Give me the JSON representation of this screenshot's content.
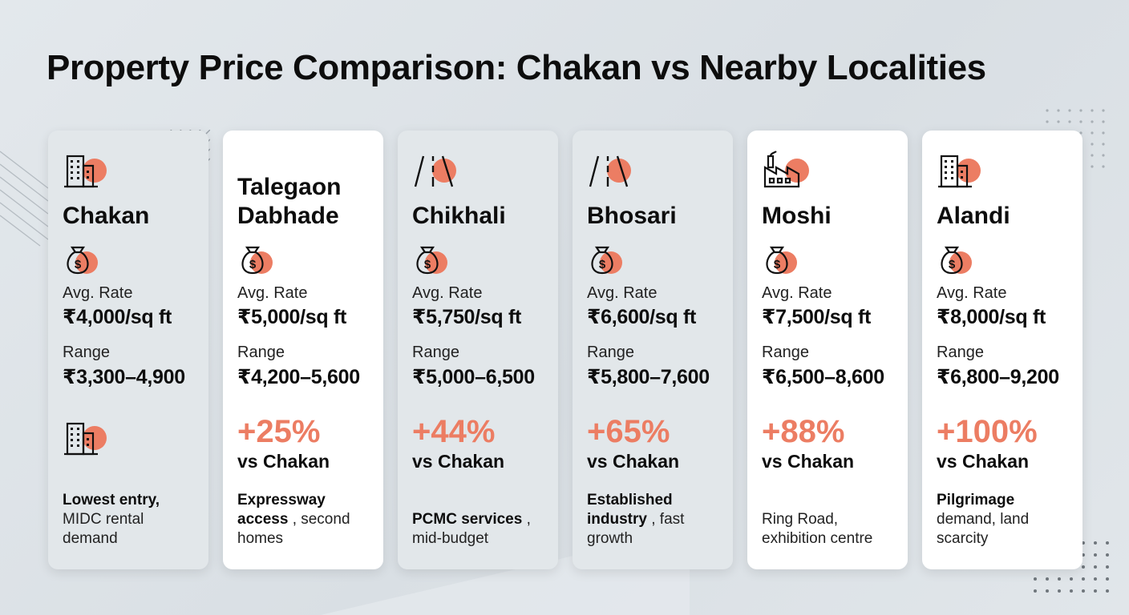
{
  "title": "Property Price Comparison: Chakan vs Nearby Localities",
  "colors": {
    "accent": "#ec7d63",
    "card_grey": "#e2e7ea",
    "card_white": "#ffffff",
    "text": "#0d0d0d"
  },
  "labels": {
    "avg_rate": "Avg. Rate",
    "range": "Range",
    "vs": "vs Chakan"
  },
  "cards": [
    {
      "icon": "building-icon",
      "theme": "grey",
      "name": "Chakan",
      "avg_rate": "₹4,000/sq ft",
      "range": "₹3,300–4,900",
      "premium": "",
      "note_bold": "Lowest entry,",
      "note_rest": "MIDC rental demand"
    },
    {
      "icon": "",
      "theme": "white",
      "name": "Talegaon Dabhade",
      "avg_rate": "₹5,000/sq ft",
      "range": "₹4,200–5,600",
      "premium": "+25%",
      "note_bold": "Expressway access",
      "note_rest": ", second homes"
    },
    {
      "icon": "road-icon",
      "theme": "grey",
      "name": "Chikhali",
      "avg_rate": "₹5,750/sq ft",
      "range": "₹5,000–6,500",
      "premium": "+44%",
      "note_bold": "PCMC services",
      "note_rest": ", mid-budget"
    },
    {
      "icon": "road-icon",
      "theme": "grey",
      "name": "Bhosari",
      "avg_rate": "₹6,600/sq ft",
      "range": "₹5,800–7,600",
      "premium": "+65%",
      "note_bold": "Established industry",
      "note_rest": ", fast growth"
    },
    {
      "icon": "factory-icon",
      "theme": "white",
      "name": "Moshi",
      "avg_rate": "₹7,500/sq ft",
      "range": "₹6,500–8,600",
      "premium": "+88%",
      "note_bold": "",
      "note_rest": "Ring Road, exhibition centre"
    },
    {
      "icon": "building-icon",
      "theme": "white",
      "name": "Alandi",
      "avg_rate": "₹8,000/sq ft",
      "range": "₹6,800–9,200",
      "premium": "+100%",
      "note_bold": "Pilgrimage",
      "note_rest": " demand, land scarcity"
    }
  ]
}
